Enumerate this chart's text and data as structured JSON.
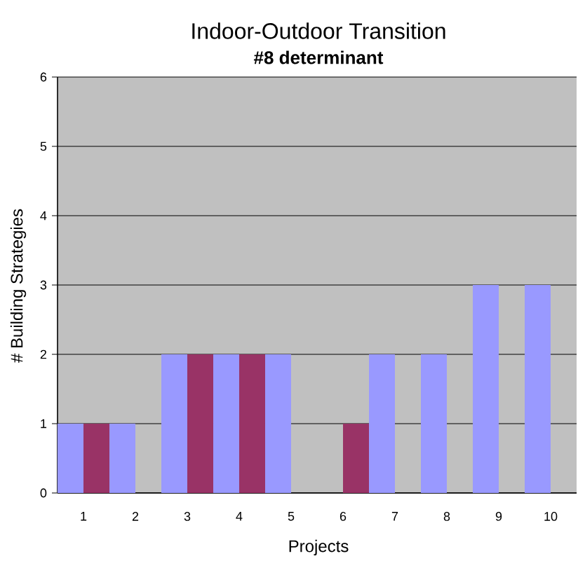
{
  "chart_data": {
    "type": "bar",
    "title": "Indoor-Outdoor Transition",
    "subtitle": "**#8 determinant**",
    "xlabel": "Projects",
    "ylabel": "# Building Strategies",
    "categories": [
      "1",
      "2",
      "3",
      "4",
      "5",
      "6",
      "7",
      "8",
      "9",
      "10"
    ],
    "series": [
      {
        "color": "#9999ff",
        "values": [
          1,
          1,
          2,
          2,
          2,
          0,
          2,
          2,
          3,
          3
        ]
      },
      {
        "color": "#993366",
        "values": [
          1,
          0,
          2,
          2,
          0,
          1,
          0,
          0,
          0,
          0
        ]
      }
    ],
    "ylim": [
      0,
      6
    ],
    "yticks": [
      0,
      1,
      2,
      3,
      4,
      5,
      6
    ],
    "grid": "y"
  }
}
